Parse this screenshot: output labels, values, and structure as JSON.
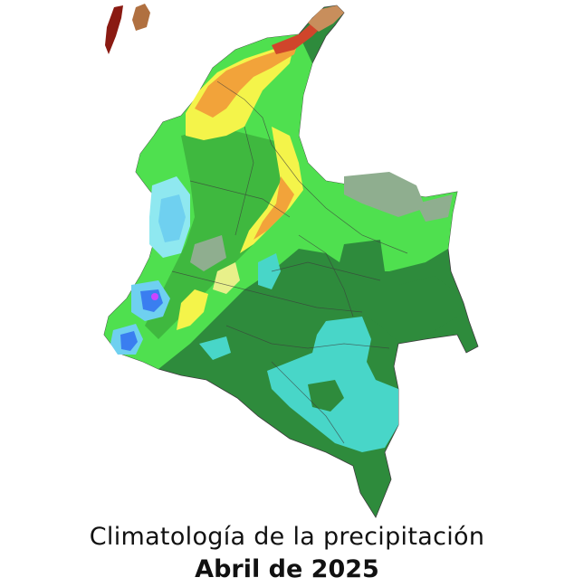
{
  "title": "Climatología de la precipitación",
  "subtitle": "Abril de 2025",
  "map": {
    "region": "Colombia",
    "colors": {
      "dark_green": "#2e8b3c",
      "green": "#3fb83f",
      "bright_green": "#4fe04f",
      "light_green": "#7edc4f",
      "gray_green": "#8fae8f",
      "yellow": "#f4f44a",
      "light_yellow": "#e8f08a",
      "orange": "#f2a33a",
      "red": "#d0452b",
      "dark_red": "#8a1a12",
      "brown": "#b07040",
      "tan": "#c88e5c",
      "turquoise": "#48d6c8",
      "light_cyan": "#8fe8f0",
      "cyan": "#6fd0f0",
      "blue": "#3a7ef0",
      "magenta": "#cc44ff",
      "border": "#3c3c3c"
    }
  }
}
